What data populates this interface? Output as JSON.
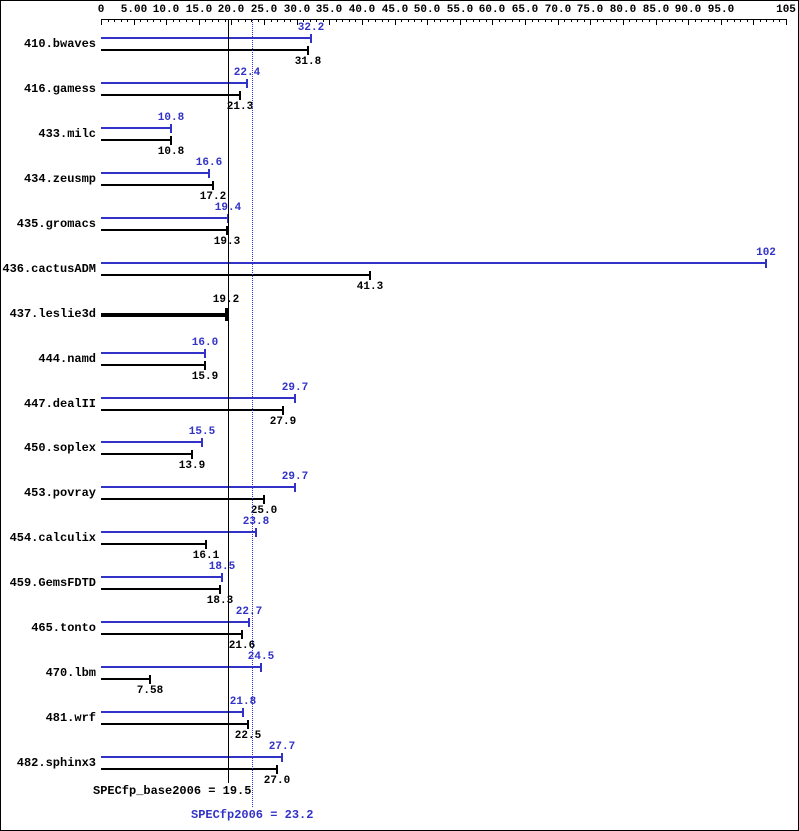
{
  "chart_data": {
    "type": "bar",
    "orientation": "horizontal",
    "legend_position": "none",
    "grid": false,
    "axis": {
      "min": 0,
      "max": 105,
      "major_tick_step": 5,
      "minor_tick_step": 1,
      "tick_labels": [
        {
          "value": 0,
          "text": "0"
        },
        {
          "value": 5,
          "text": "5.00"
        },
        {
          "value": 10,
          "text": "10.0"
        },
        {
          "value": 15,
          "text": "15.0"
        },
        {
          "value": 20,
          "text": "20.0"
        },
        {
          "value": 25,
          "text": "25.0"
        },
        {
          "value": 30,
          "text": "30.0"
        },
        {
          "value": 35,
          "text": "35.0"
        },
        {
          "value": 40,
          "text": "40.0"
        },
        {
          "value": 45,
          "text": "45.0"
        },
        {
          "value": 50,
          "text": "50.0"
        },
        {
          "value": 55,
          "text": "55.0"
        },
        {
          "value": 60,
          "text": "60.0"
        },
        {
          "value": 65,
          "text": "65.0"
        },
        {
          "value": 70,
          "text": "70.0"
        },
        {
          "value": 75,
          "text": "75.0"
        },
        {
          "value": 80,
          "text": "80.0"
        },
        {
          "value": 85,
          "text": "85.0"
        },
        {
          "value": 90,
          "text": "90.0"
        },
        {
          "value": 95,
          "text": "95.0"
        },
        {
          "value": 105,
          "text": "105"
        }
      ]
    },
    "colors": {
      "peak": "#3232c8",
      "base": "#000000"
    },
    "rows": [
      {
        "label": "410.bwaves",
        "peak_value": 32.2,
        "peak_text": "32.2",
        "base_value": 31.8,
        "base_text": "31.8"
      },
      {
        "label": "416.gamess",
        "peak_value": 22.4,
        "peak_text": "22.4",
        "base_value": 21.3,
        "base_text": "21.3"
      },
      {
        "label": "433.milc",
        "peak_value": 10.8,
        "peak_text": "10.8",
        "base_value": 10.8,
        "base_text": "10.8"
      },
      {
        "label": "434.zeusmp",
        "peak_value": 16.6,
        "peak_text": "16.6",
        "base_value": 17.2,
        "base_text": "17.2"
      },
      {
        "label": "435.gromacs",
        "peak_value": 19.4,
        "peak_text": "19.4",
        "base_value": 19.3,
        "base_text": "19.3"
      },
      {
        "label": "436.cactusADM",
        "peak_value": 102,
        "peak_text": "102",
        "base_value": 41.3,
        "base_text": "41.3"
      },
      {
        "label": "437.leslie3d",
        "peak_value": null,
        "peak_text": null,
        "base_value": 19.2,
        "base_text": "19.2",
        "style": "bold",
        "base_label_position": "above"
      },
      {
        "label": "444.namd",
        "peak_value": 16.0,
        "peak_text": "16.0",
        "base_value": 15.9,
        "base_text": "15.9"
      },
      {
        "label": "447.dealII",
        "peak_value": 29.7,
        "peak_text": "29.7",
        "base_value": 27.9,
        "base_text": "27.9"
      },
      {
        "label": "450.soplex",
        "peak_value": 15.5,
        "peak_text": "15.5",
        "base_value": 13.9,
        "base_text": "13.9"
      },
      {
        "label": "453.povray",
        "peak_value": 29.7,
        "peak_text": "29.7",
        "base_value": 25.0,
        "base_text": "25.0"
      },
      {
        "label": "454.calculix",
        "peak_value": 23.8,
        "peak_text": "23.8",
        "base_value": 16.1,
        "base_text": "16.1"
      },
      {
        "label": "459.GemsFDTD",
        "peak_value": 18.5,
        "peak_text": "18.5",
        "base_value": 18.3,
        "base_text": "18.3"
      },
      {
        "label": "465.tonto",
        "peak_value": 22.7,
        "peak_text": "22.7",
        "base_value": 21.6,
        "base_text": "21.6"
      },
      {
        "label": "470.lbm",
        "peak_value": 24.5,
        "peak_text": "24.5",
        "base_value": 7.58,
        "base_text": "7.58"
      },
      {
        "label": "481.wrf",
        "peak_value": 21.8,
        "peak_text": "21.8",
        "base_value": 22.5,
        "base_text": "22.5"
      },
      {
        "label": "482.sphinx3",
        "peak_value": 27.7,
        "peak_text": "27.7",
        "base_value": 27.0,
        "base_text": "27.0"
      }
    ],
    "means": {
      "base": {
        "value": 19.5,
        "text": "SPECfp_base2006 = 19.5"
      },
      "peak": {
        "value": 23.2,
        "text": "SPECfp2006 = 23.2"
      }
    }
  }
}
